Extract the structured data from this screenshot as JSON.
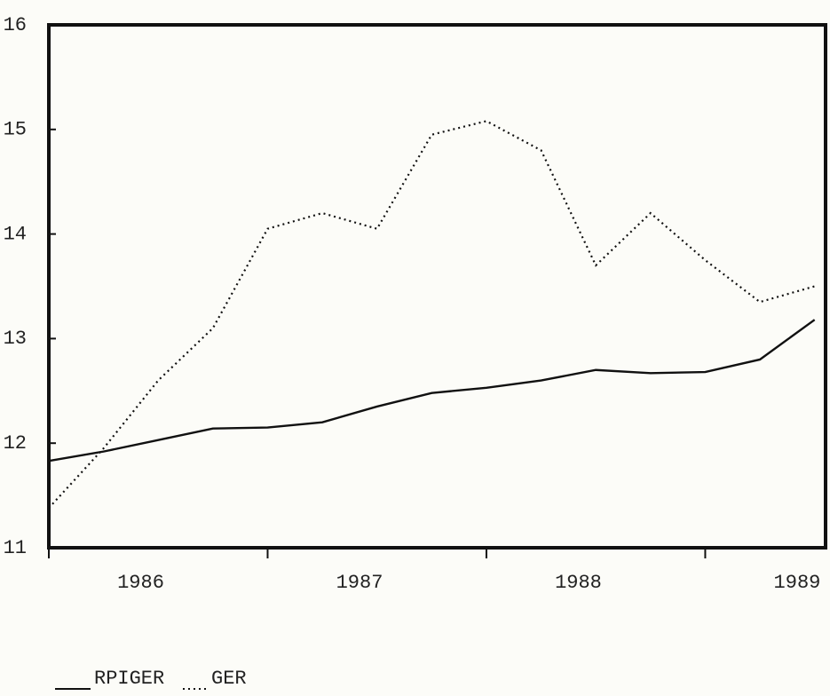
{
  "chart_data": {
    "type": "line",
    "x": [
      1986.0,
      1986.25,
      1986.5,
      1986.75,
      1987.0,
      1987.25,
      1987.5,
      1987.75,
      1988.0,
      1988.25,
      1988.5,
      1988.75,
      1989.0,
      1989.25,
      1989.5
    ],
    "series": [
      {
        "name": "RPIGER",
        "color": "#111111",
        "style": "solid",
        "values": [
          11.83,
          11.92,
          12.03,
          12.14,
          12.15,
          12.2,
          12.35,
          12.48,
          12.53,
          12.6,
          12.7,
          12.67,
          12.68,
          12.8,
          13.18
        ]
      },
      {
        "name": "GER",
        "color": "#111111",
        "style": "dotted",
        "values": [
          11.38,
          11.95,
          12.6,
          13.1,
          14.05,
          14.2,
          14.05,
          14.95,
          15.08,
          14.8,
          13.7,
          14.2,
          13.75,
          13.35,
          13.5
        ]
      }
    ],
    "xlim": [
      1986.0,
      1989.55
    ],
    "xticks": [
      1986,
      1987,
      1988,
      1989
    ],
    "ylim": [
      11,
      16
    ],
    "yticks": [
      11,
      12,
      13,
      14,
      15,
      16
    ],
    "grid": false,
    "legend": "bottom-left"
  }
}
